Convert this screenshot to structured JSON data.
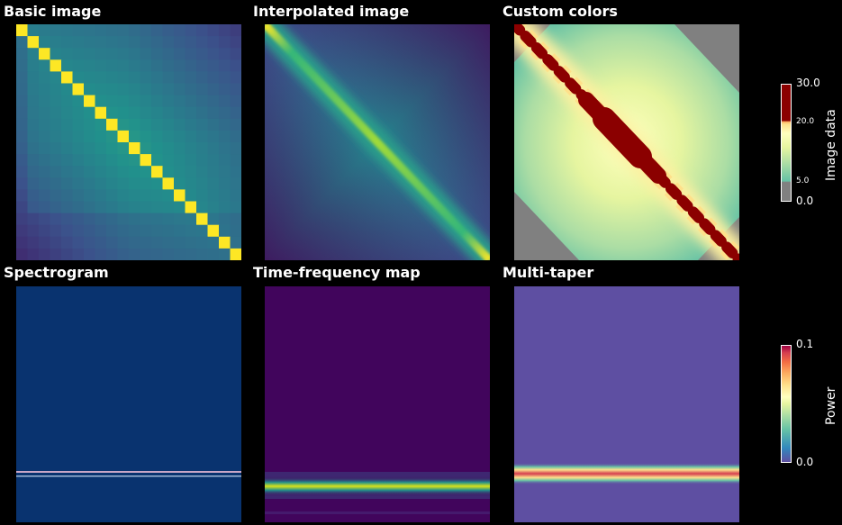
{
  "chart_data": [
    {
      "type": "heatmap",
      "title": "Basic image",
      "grid": "20x20 blocks",
      "diagonal_value": 30,
      "colormap": "viridis"
    },
    {
      "type": "heatmap",
      "title": "Interpolated image",
      "diagonal_value": 30,
      "colormap": "viridis",
      "interpolation": "smooth"
    },
    {
      "type": "heatmap",
      "title": "Custom colors",
      "colormap": "spectral-yellow-green",
      "clip_low_color": "#808080",
      "clip_high_color": "#8b0000"
    },
    {
      "type": "heatmap",
      "title": "Spectrogram",
      "colormap": "blue",
      "line_frequency_fraction": 0.8
    },
    {
      "type": "heatmap",
      "title": "Time-frequency map",
      "colormap": "viridis",
      "line_frequency_fraction": 0.84
    },
    {
      "type": "heatmap",
      "title": "Multi-taper",
      "colormap": "spectral",
      "line_frequency_fraction": 0.8
    }
  ],
  "colorbars": {
    "image": {
      "label": "Image data",
      "range": [
        0,
        30
      ],
      "ticks": [
        "30.0",
        "20.0",
        "5.0",
        "0.0"
      ],
      "major_ticks": [
        "30.0",
        "0.0"
      ]
    },
    "power": {
      "label": "Power",
      "range": [
        0.0,
        0.1
      ],
      "ticks": [
        "0.1",
        "0.0"
      ]
    }
  },
  "colors": {
    "background": "#000000",
    "clip_low": "#808080",
    "clip_high": "#8b0000"
  }
}
